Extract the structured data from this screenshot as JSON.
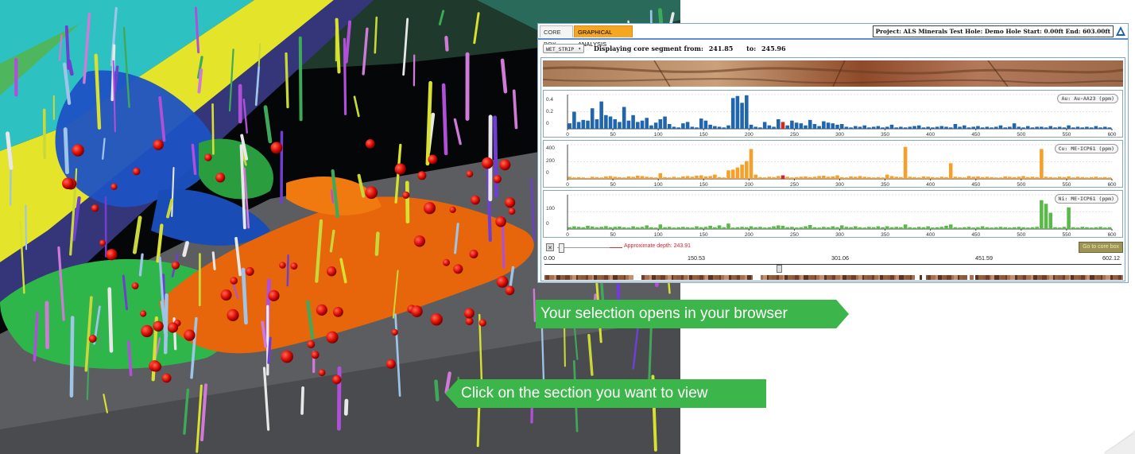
{
  "viewer": {
    "tabs": [
      {
        "label": "CORE BOX"
      },
      {
        "label": "GRAPHICAL ANALYSIS"
      }
    ],
    "project_info": "Project:  ALS Minerals Test   Hole:  Demo Hole   Start:  0.00ft   End:  603.00ft",
    "dropdown_value": "WET_STRIP",
    "segment": {
      "label_from": "Displaying core segment from:",
      "from": "241.85",
      "label_to": "to:",
      "to": "245.96"
    },
    "slider": {
      "approx_label": "Approximate depth:  243.91",
      "goto_label": "Go to core box"
    },
    "depth_scale": {
      "ticks": [
        "0.00",
        "150.53",
        "301.06",
        "451.59",
        "602.12"
      ],
      "selected_fraction": 0.405
    }
  },
  "callouts": {
    "open": "Your selection opens in your browser",
    "click": "Click on the section you want to view"
  },
  "colors": {
    "au": "#2166ac",
    "cu": "#f5a02a",
    "ni": "#5cb84a",
    "highlight": "#d62728",
    "callout": "#3cb54a",
    "tab_active": "#f5a623"
  },
  "chart_data": [
    {
      "type": "bar",
      "name": "Au: Au-AA23 (ppm)",
      "x_ticks": [
        "0",
        "50",
        "100",
        "150",
        "200",
        "250",
        "300",
        "350",
        "400",
        "450",
        "500",
        "550",
        "600"
      ],
      "y_ticks": [
        "0.4",
        "0.2",
        "0"
      ],
      "ylim": [
        0,
        0.5
      ],
      "xlim": [
        0,
        600
      ],
      "values": [
        0.08,
        0.25,
        0.1,
        0.13,
        0.12,
        0.3,
        0.14,
        0.4,
        0.2,
        0.18,
        0.14,
        0.1,
        0.32,
        0.12,
        0.2,
        0.1,
        0.12,
        0.16,
        0.05,
        0.09,
        0.14,
        0.18,
        0.07,
        0.03,
        0.02,
        0.08,
        0.1,
        0.03,
        0.02,
        0.15,
        0.12,
        0.06,
        0.04,
        0.03,
        0.02,
        0.05,
        0.45,
        0.48,
        0.38,
        0.49,
        0.06,
        0.03,
        0.02,
        0.1,
        0.05,
        0.03,
        0.14,
        0.1,
        0.05,
        0.12,
        0.09,
        0.08,
        0.05,
        0.13,
        0.07,
        0.04,
        0.11,
        0.09,
        0.08,
        0.06,
        0.07,
        0.03,
        0.02,
        0.04,
        0.03,
        0.05,
        0.02,
        0.03,
        0.04,
        0.02,
        0.03,
        0.06,
        0.02,
        0.03,
        0.02,
        0.03,
        0.04,
        0.05,
        0.02,
        0.03,
        0.02,
        0.03,
        0.04,
        0.03,
        0.02,
        0.07,
        0.03,
        0.05,
        0.02,
        0.03,
        0.04,
        0.02,
        0.03,
        0.02,
        0.03,
        0.05,
        0.02,
        0.03,
        0.08,
        0.03,
        0.02,
        0.04,
        0.02,
        0.03,
        0.03,
        0.02,
        0.04,
        0.02,
        0.03,
        0.02,
        0.05,
        0.02,
        0.03,
        0.02,
        0.03,
        0.02,
        0.04,
        0.02,
        0.03,
        0.02
      ],
      "highlight_index": 47
    },
    {
      "type": "bar",
      "name": "Cu: ME-ICP61 (ppm)",
      "x_ticks": [
        "0",
        "50",
        "100",
        "150",
        "200",
        "250",
        "300",
        "350",
        "400",
        "450",
        "500",
        "550",
        "600"
      ],
      "y_ticks": [
        "400",
        "200",
        "0"
      ],
      "ylim": [
        0,
        480
      ],
      "xlim": [
        0,
        600
      ],
      "values": [
        30,
        20,
        25,
        20,
        15,
        30,
        25,
        20,
        35,
        40,
        30,
        25,
        20,
        35,
        30,
        45,
        40,
        30,
        25,
        20,
        80,
        25,
        20,
        30,
        20,
        35,
        40,
        30,
        45,
        50,
        35,
        40,
        60,
        25,
        20,
        120,
        130,
        160,
        200,
        250,
        420,
        60,
        25,
        20,
        30,
        25,
        40,
        50,
        30,
        20,
        25,
        30,
        35,
        25,
        30,
        40,
        45,
        30,
        35,
        50,
        25,
        20,
        35,
        30,
        40,
        30,
        25,
        20,
        25,
        20,
        60,
        40,
        30,
        25,
        450,
        30,
        25,
        20,
        35,
        30,
        25,
        20,
        30,
        25,
        220,
        30,
        25,
        20,
        40,
        30,
        35,
        25,
        30,
        25,
        20,
        20,
        35,
        30,
        25,
        30,
        40,
        25,
        30,
        25,
        420,
        30,
        25,
        20,
        30,
        25,
        35,
        20,
        30,
        25,
        20,
        25,
        30,
        20,
        25,
        20
      ],
      "highlight_index": 47
    },
    {
      "type": "bar",
      "name": "Ni: ME-ICP61 (ppm)",
      "x_ticks": [
        "0",
        "50",
        "100",
        "150",
        "200",
        "250",
        "300",
        "350",
        "400",
        "450",
        "500",
        "550",
        "600"
      ],
      "y_ticks": [
        "100",
        "0"
      ],
      "ylim": [
        0,
        190
      ],
      "xlim": [
        0,
        600
      ],
      "values": [
        10,
        15,
        12,
        10,
        18,
        14,
        10,
        12,
        16,
        10,
        12,
        14,
        10,
        8,
        15,
        10,
        12,
        20,
        10,
        8,
        25,
        10,
        12,
        8,
        10,
        12,
        10,
        8,
        15,
        10,
        12,
        18,
        10,
        20,
        10,
        30,
        8,
        10,
        12,
        10,
        15,
        10,
        12,
        8,
        10,
        15,
        20,
        18,
        10,
        12,
        8,
        10,
        15,
        22,
        10,
        8,
        12,
        10,
        15,
        10,
        20,
        12,
        10,
        15,
        10,
        8,
        12,
        10,
        15,
        10,
        15,
        10,
        12,
        10,
        25,
        10,
        8,
        12,
        10,
        15,
        8,
        10,
        12,
        18,
        25,
        10,
        8,
        10,
        12,
        8,
        10,
        15,
        10,
        8,
        10,
        12,
        10,
        8,
        10,
        12,
        10,
        8,
        10,
        12,
        160,
        140,
        90,
        10,
        8,
        12,
        120,
        10,
        8,
        12,
        10,
        8,
        10,
        12,
        8,
        10
      ]
    }
  ]
}
